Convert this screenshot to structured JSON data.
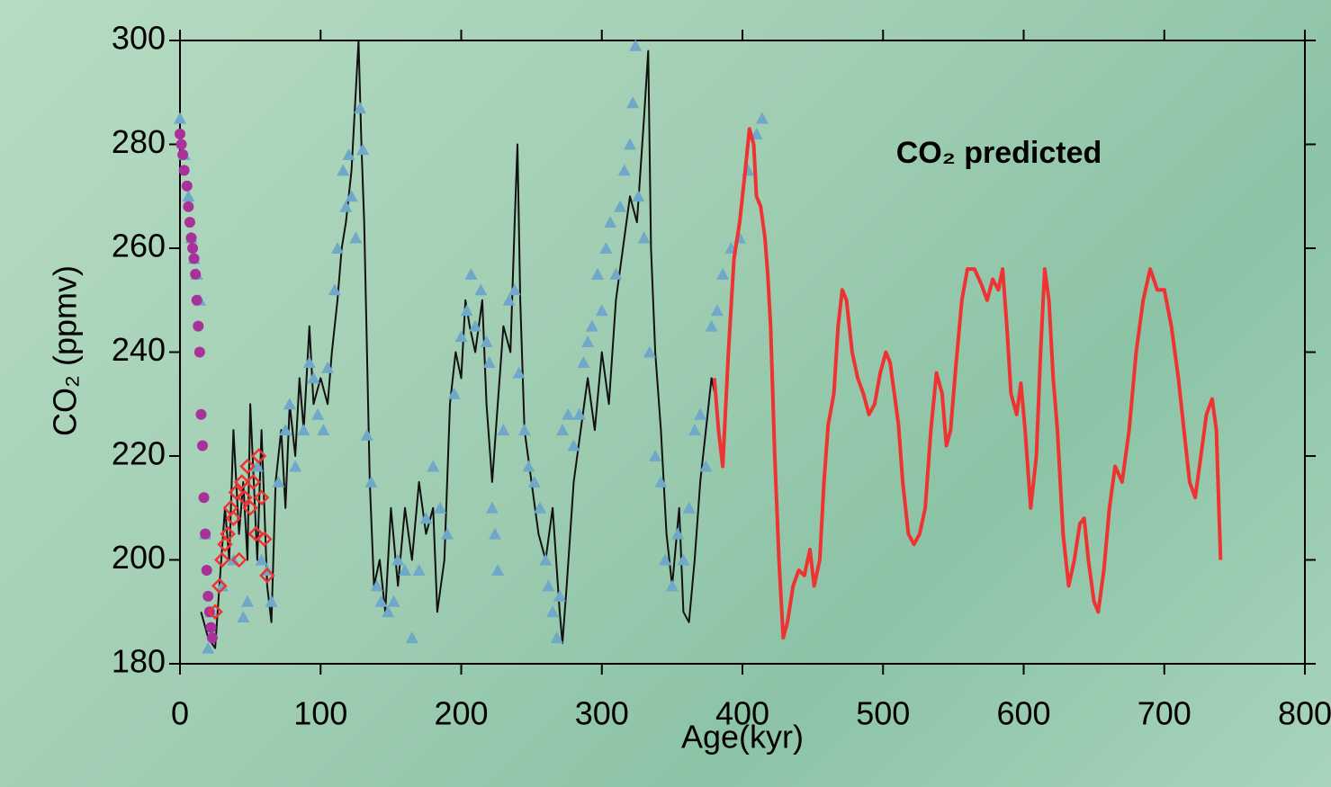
{
  "chart_data": {
    "type": "scatter",
    "x_label": "Age(kyr)",
    "y_label": "CO₂ (ppmv)",
    "annotation": "CO₂ predicted",
    "annotation_color": "#ee3333",
    "xlim": [
      0,
      800
    ],
    "ylim": [
      180,
      300
    ],
    "xticks": [
      0,
      100,
      200,
      300,
      400,
      500,
      600,
      700,
      800
    ],
    "yticks": [
      180,
      200,
      220,
      240,
      260,
      280,
      300
    ],
    "series": [
      {
        "kind": "line",
        "color": "#111111",
        "x": [
          15,
          20,
          25,
          28,
          32,
          35,
          38,
          42,
          45,
          48,
          50,
          55,
          58,
          62,
          65,
          68,
          72,
          75,
          78,
          82,
          85,
          88,
          92,
          95,
          100,
          105,
          108,
          112,
          115,
          118,
          122,
          125,
          127,
          129,
          131,
          133,
          135,
          138,
          142,
          146,
          150,
          155,
          160,
          165,
          170,
          175,
          180,
          183,
          188,
          192,
          196,
          200,
          203,
          206,
          210,
          215,
          218,
          222,
          226,
          230,
          235,
          238,
          240,
          242,
          245,
          250,
          255,
          260,
          265,
          270,
          272,
          275,
          280,
          285,
          290,
          295,
          300,
          305,
          310,
          315,
          320,
          325,
          330,
          333,
          335,
          338,
          342,
          346,
          350,
          355,
          358,
          362,
          366,
          370,
          374,
          378,
          382
        ],
        "values": [
          190,
          185,
          183,
          195,
          210,
          200,
          225,
          205,
          215,
          200,
          230,
          200,
          225,
          195,
          188,
          215,
          225,
          210,
          230,
          220,
          235,
          225,
          245,
          230,
          235,
          230,
          240,
          250,
          260,
          265,
          275,
          290,
          300,
          280,
          265,
          240,
          215,
          195,
          200,
          190,
          210,
          195,
          210,
          200,
          215,
          205,
          210,
          190,
          200,
          230,
          240,
          235,
          250,
          245,
          240,
          250,
          230,
          215,
          230,
          245,
          240,
          265,
          280,
          250,
          225,
          215,
          205,
          200,
          210,
          190,
          184,
          195,
          215,
          225,
          235,
          225,
          240,
          230,
          250,
          260,
          270,
          265,
          285,
          298,
          260,
          240,
          225,
          205,
          195,
          210,
          190,
          188,
          200,
          215,
          225,
          235,
          230
        ]
      },
      {
        "kind": "scatter",
        "marker": "triangle",
        "color": "#6fa8c8",
        "x": [
          0,
          3,
          6,
          8,
          10,
          12,
          14,
          18,
          20,
          22,
          30,
          38,
          45,
          48,
          55,
          58,
          62,
          65,
          70,
          75,
          78,
          82,
          88,
          92,
          95,
          98,
          102,
          105,
          110,
          112,
          116,
          118,
          120,
          122,
          125,
          128,
          130,
          133,
          136,
          140,
          143,
          148,
          152,
          155,
          160,
          165,
          170,
          175,
          180,
          185,
          190,
          195,
          200,
          204,
          207,
          210,
          214,
          218,
          220,
          222,
          224,
          226,
          230,
          234,
          238,
          241,
          245,
          248,
          252,
          256,
          260,
          262,
          265,
          268,
          270,
          272,
          276,
          280,
          284,
          287,
          290,
          293,
          297,
          300,
          303,
          306,
          310,
          313,
          316,
          320,
          322,
          324,
          326,
          330,
          334,
          338,
          342,
          345,
          350,
          354,
          358,
          362,
          366,
          370,
          374,
          378,
          382,
          386,
          392,
          398,
          404,
          410,
          414
        ],
        "values": [
          285,
          278,
          270,
          262,
          258,
          255,
          250,
          205,
          183,
          190,
          195,
          200,
          189,
          192,
          218,
          200,
          198,
          192,
          215,
          225,
          230,
          218,
          225,
          238,
          235,
          228,
          225,
          237,
          252,
          260,
          275,
          268,
          278,
          270,
          262,
          287,
          279,
          224,
          215,
          195,
          192,
          190,
          192,
          200,
          198,
          185,
          198,
          208,
          218,
          210,
          205,
          232,
          243,
          248,
          255,
          245,
          252,
          242,
          238,
          210,
          205,
          198,
          225,
          250,
          252,
          236,
          225,
          218,
          215,
          210,
          200,
          195,
          190,
          185,
          193,
          225,
          228,
          222,
          228,
          238,
          242,
          245,
          255,
          248,
          260,
          265,
          255,
          268,
          275,
          280,
          288,
          299,
          270,
          262,
          240,
          220,
          215,
          200,
          195,
          205,
          200,
          210,
          225,
          228,
          218,
          245,
          248,
          255,
          260,
          262,
          275,
          282,
          285
        ]
      },
      {
        "kind": "scatter",
        "marker": "circle",
        "color": "#a8329a",
        "x": [
          0,
          1,
          2,
          3,
          5,
          6,
          7,
          8,
          9,
          10,
          11,
          12,
          13,
          14,
          15,
          16,
          17,
          18,
          19,
          20,
          21,
          22,
          23
        ],
        "values": [
          282,
          280,
          278,
          275,
          272,
          268,
          265,
          262,
          260,
          258,
          255,
          250,
          245,
          240,
          228,
          222,
          212,
          205,
          198,
          193,
          190,
          187,
          185
        ]
      },
      {
        "kind": "scatter",
        "marker": "diamond",
        "color": "#ee3333",
        "x": [
          25,
          28,
          30,
          32,
          34,
          36,
          38,
          40,
          42,
          44,
          46,
          48,
          50,
          52,
          54,
          56,
          58,
          60,
          62
        ],
        "values": [
          190,
          195,
          200,
          203,
          205,
          210,
          208,
          213,
          200,
          215,
          212,
          218,
          210,
          215,
          205,
          220,
          212,
          204,
          197
        ]
      },
      {
        "kind": "line",
        "color": "#ee3333",
        "width": 4,
        "x": [
          380,
          383,
          386,
          390,
          394,
          398,
          402,
          405,
          408,
          410,
          413,
          416,
          418,
          420,
          423,
          426,
          429,
          432,
          436,
          440,
          444,
          448,
          451,
          455,
          458,
          461,
          465,
          468,
          471,
          474,
          478,
          482,
          486,
          490,
          494,
          498,
          502,
          505,
          508,
          511,
          514,
          518,
          522,
          526,
          530,
          534,
          538,
          542,
          545,
          548,
          552,
          556,
          560,
          565,
          570,
          574,
          578,
          582,
          585,
          588,
          591,
          595,
          598,
          601,
          605,
          609,
          612,
          615,
          618,
          621,
          624,
          628,
          632,
          636,
          640,
          643,
          646,
          650,
          653,
          657,
          661,
          665,
          670,
          675,
          680,
          685,
          690,
          695,
          700,
          705,
          710,
          714,
          718,
          722,
          726,
          730,
          734,
          737,
          740
        ],
        "values": [
          235,
          225,
          218,
          240,
          258,
          265,
          275,
          283,
          280,
          270,
          268,
          262,
          255,
          245,
          220,
          200,
          185,
          188,
          195,
          198,
          197,
          202,
          195,
          200,
          215,
          226,
          232,
          245,
          252,
          250,
          240,
          235,
          232,
          228,
          230,
          236,
          240,
          238,
          232,
          226,
          215,
          205,
          203,
          205,
          210,
          225,
          236,
          232,
          222,
          225,
          238,
          250,
          256,
          256,
          253,
          250,
          254,
          252,
          256,
          245,
          232,
          228,
          234,
          225,
          210,
          220,
          240,
          256,
          250,
          235,
          225,
          205,
          195,
          200,
          207,
          208,
          200,
          192,
          190,
          198,
          210,
          218,
          215,
          225,
          240,
          250,
          256,
          252,
          252,
          245,
          235,
          225,
          215,
          212,
          220,
          228,
          231,
          225,
          200
        ]
      }
    ]
  }
}
